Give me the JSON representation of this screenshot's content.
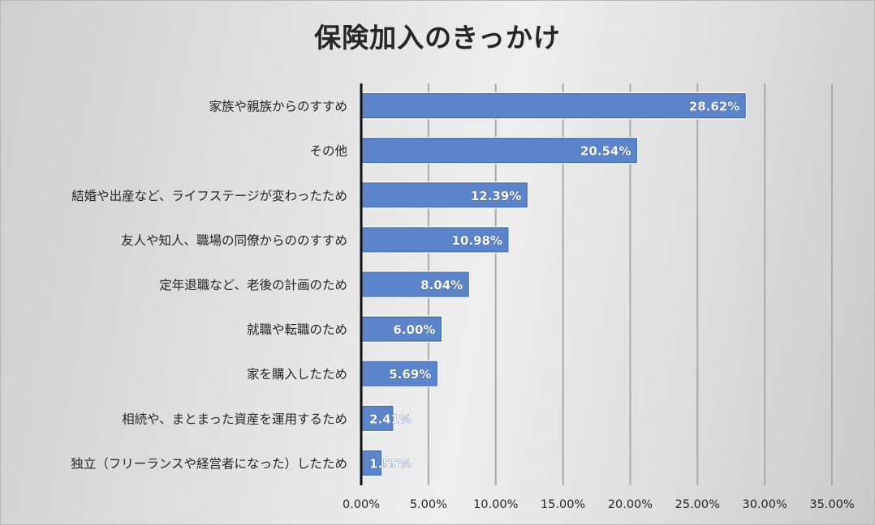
{
  "chart_data": {
    "type": "bar",
    "orientation": "horizontal",
    "title": "保険加入のきっかけ",
    "xlabel": "",
    "ylabel": "",
    "xlim": [
      0,
      35
    ],
    "grid": true,
    "categories": [
      "家族や親族からのすすめ",
      "その他",
      "結婚や出産など、ライフステージが変わったため",
      "友人や知人、職場の同僚からののすすめ",
      "定年退職など、老後の計画のため",
      "就職や転職のため",
      "家を購入したため",
      "相続や、まとまった資産を運用するため",
      "独立（フリーランスや経営者になった）したため"
    ],
    "values": [
      28.62,
      20.54,
      12.39,
      10.98,
      8.04,
      6.0,
      5.69,
      2.41,
      1.55
    ],
    "data_labels": [
      "28.62%",
      "20.54%",
      "12.39%",
      "10.98%",
      "8.04%",
      "6.00%",
      "5.69%",
      "2.41%",
      "1.55%"
    ],
    "xticks": [
      0,
      5,
      10,
      15,
      20,
      25,
      30,
      35
    ],
    "xtick_labels": [
      "0.00%",
      "5.00%",
      "10.00%",
      "15.00%",
      "20.00%",
      "25.00%",
      "30.00%",
      "35.00%"
    ],
    "bar_color": "#5b84cb",
    "bar_edge_color": "#3e66b0"
  }
}
